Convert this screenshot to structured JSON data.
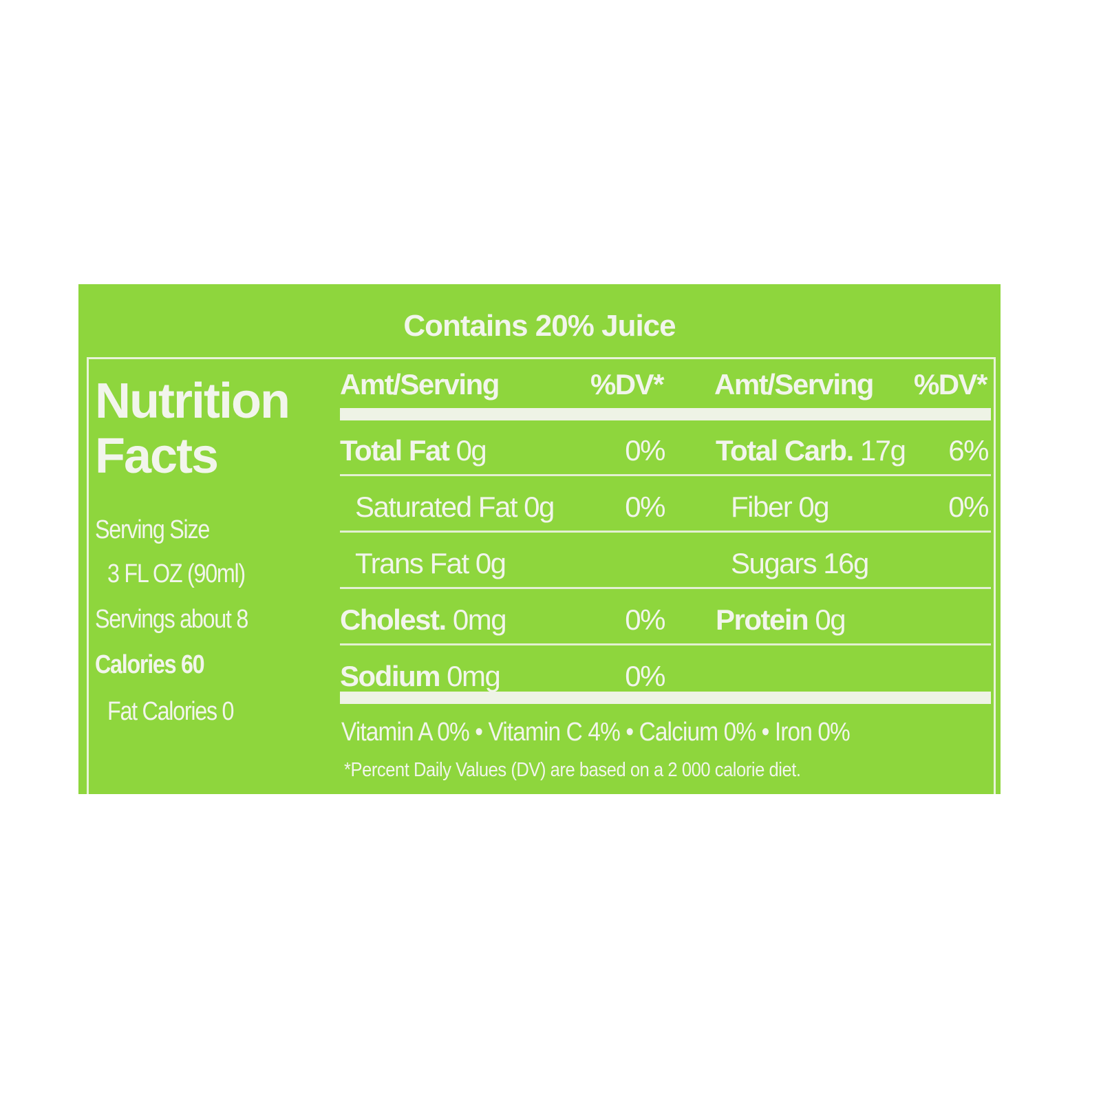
{
  "colors": {
    "background": "#8ed63d",
    "text": "#f2f5ec"
  },
  "banner": "Contains 20% Juice",
  "title": [
    "Nutrition",
    "Facts"
  ],
  "serving_size_label": "Serving Size",
  "serving_size_value": "3 FL OZ (90ml)",
  "servings": "Servings about 8",
  "calories": "Calories 60",
  "fat_calories": "Fat Calories 0",
  "headers": {
    "amt": "Amt/Serving",
    "dv": "%DV*"
  },
  "left_rows": [
    {
      "label": "Total Fat",
      "amount": "0g",
      "dv": "0%"
    },
    {
      "label": "Saturated Fat 0g",
      "amount": "",
      "dv": "0%"
    },
    {
      "label": "Trans Fat 0g",
      "amount": "",
      "dv": ""
    },
    {
      "label": "Cholest.",
      "amount": "0mg",
      "dv": "0%"
    },
    {
      "label": "Sodium",
      "amount": "0mg",
      "dv": "0%"
    }
  ],
  "right_rows": [
    {
      "label": "Total Carb.",
      "amount": "17g",
      "dv": "6%"
    },
    {
      "label": "Fiber 0g",
      "amount": "",
      "dv": "0%"
    },
    {
      "label": "Sugars 16g",
      "amount": "",
      "dv": ""
    },
    {
      "label": "Protein",
      "amount": "0g",
      "dv": ""
    }
  ],
  "vitamins": "Vitamin A 0% • Vitamin C  4% • Calcium  0% • Iron 0%",
  "footnote": "*Percent Daily Values (DV) are based on a 2 000 calorie diet."
}
